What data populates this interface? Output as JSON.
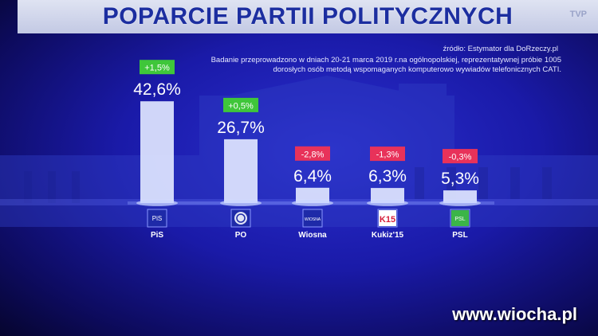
{
  "title": "POPARCIE PARTII POLITYCZNYCH",
  "channel_logo": "TVP",
  "source": "źródło:  Estymator dla DoRzeczy.pl",
  "survey_note": "Badanie przeprowadzono w dniach 20-21 marca 2019 r.na ogólnopolskiej, reprezentatywnej próbie 1005 dorosłych osób metodą wspomaganych komputerowo wywiadów telefonicznych CATI.",
  "watermark": "www.wiocha.pl",
  "colors": {
    "bar": "#dfe6ff",
    "positive_badge": "#3fc63a",
    "negative_badge": "#e8325a",
    "title": "#1c2ea0"
  },
  "chart_data": {
    "type": "bar",
    "title": "POPARCIE PARTII POLITYCZNYCH",
    "categories": [
      "PiS",
      "PO",
      "Wiosna",
      "Kukiz'15",
      "PSL"
    ],
    "values": [
      42.6,
      26.7,
      6.4,
      6.3,
      5.3
    ],
    "value_labels": [
      "42,6%",
      "26,7%",
      "6,4%",
      "6,3%",
      "5,3%"
    ],
    "changes": [
      1.5,
      0.5,
      -2.8,
      -1.3,
      -0.3
    ],
    "change_labels": [
      "+1,5%",
      "+0,5%",
      "-2,8%",
      "-1,3%",
      "-0,3%"
    ],
    "logo_icons": [
      "pis-logo-icon",
      "po-logo-icon",
      "wiosna-logo-icon",
      "kukiz-logo-icon",
      "psl-logo-icon"
    ],
    "logo_texts": [
      "PiS",
      "",
      "WIOSNA",
      "K15",
      "PSL"
    ],
    "ylim": [
      0,
      50
    ]
  }
}
